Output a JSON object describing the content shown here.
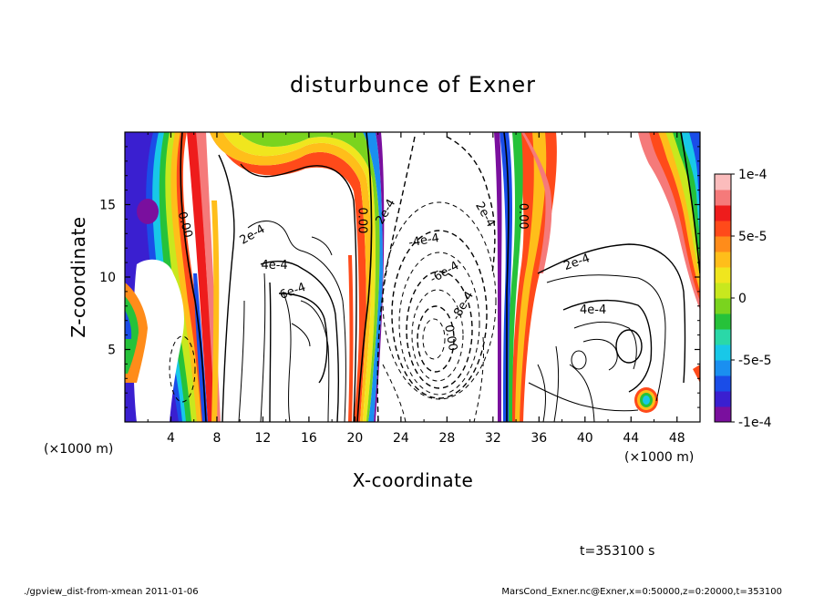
{
  "chart_data": {
    "type": "heatmap",
    "title": "disturbunce of Exner",
    "xlabel": "X-coordinate",
    "ylabel": "Z-coordinate",
    "xunit_left": "(×1000 m)",
    "xunit_right": "(×1000 m)",
    "xlim": [
      0,
      50
    ],
    "ylim": [
      0,
      20
    ],
    "x_ticks": [
      4,
      8,
      12,
      16,
      20,
      24,
      28,
      32,
      36,
      40,
      44,
      48
    ],
    "y_ticks": [
      5,
      10,
      15
    ],
    "colorbar": {
      "min": -0.0001,
      "max": 0.0001,
      "tick_labels": [
        "1e-4",
        "5e-5",
        "0",
        "-5e-5",
        "-1e-4"
      ],
      "tick_values": [
        0.0001,
        5e-05,
        0,
        -5e-05,
        -0.0001
      ],
      "colors": [
        "#7a0f9e",
        "#3a1fd0",
        "#1a4de8",
        "#1a8ff0",
        "#18c8e8",
        "#2ad8a8",
        "#26c23a",
        "#7ad41e",
        "#c8e81e",
        "#f0e61e",
        "#ffbe1a",
        "#ff8c1a",
        "#ff4a1a",
        "#ee1c1c",
        "#f57a7a",
        "#fbbcbc"
      ]
    },
    "contour_labels": [
      {
        "text": "0.00",
        "x": 5.2,
        "y": 13.6,
        "angle": 75
      },
      {
        "text": "0.00",
        "x": 20.6,
        "y": 13.9,
        "angle": 90
      },
      {
        "text": "0.00",
        "x": 34.6,
        "y": 14.2,
        "angle": 90
      },
      {
        "text": "0.00",
        "x": 28.3,
        "y": 5.8,
        "angle": 80
      },
      {
        "text": "2e-4",
        "x": 11.1,
        "y": 12.9,
        "angle": -30
      },
      {
        "text": "4e-4",
        "x": 13.0,
        "y": 10.8,
        "angle": 0
      },
      {
        "text": "6e-4",
        "x": 14.6,
        "y": 9.0,
        "angle": -20
      },
      {
        "text": "2e-4",
        "x": 22.7,
        "y": 14.5,
        "angle": -60
      },
      {
        "text": "-4e-4",
        "x": 26.0,
        "y": 12.5,
        "angle": -10
      },
      {
        "text": "-6e-4",
        "x": 27.8,
        "y": 10.3,
        "angle": -30
      },
      {
        "text": "-8e-4",
        "x": 29.4,
        "y": 8.0,
        "angle": -60
      },
      {
        "text": "2e-4",
        "x": 31.3,
        "y": 14.3,
        "angle": 60
      },
      {
        "text": "2e-4",
        "x": 39.3,
        "y": 11.0,
        "angle": -20
      },
      {
        "text": "4e-4",
        "x": 40.7,
        "y": 7.7,
        "angle": 0
      }
    ],
    "time_note": "t=353100 s"
  },
  "footer": {
    "left": "./gpview_dist-from-xmean  2011-01-06",
    "right": "MarsCond_Exner.nc@Exner,x=0:50000,z=0:20000,t=353100"
  }
}
